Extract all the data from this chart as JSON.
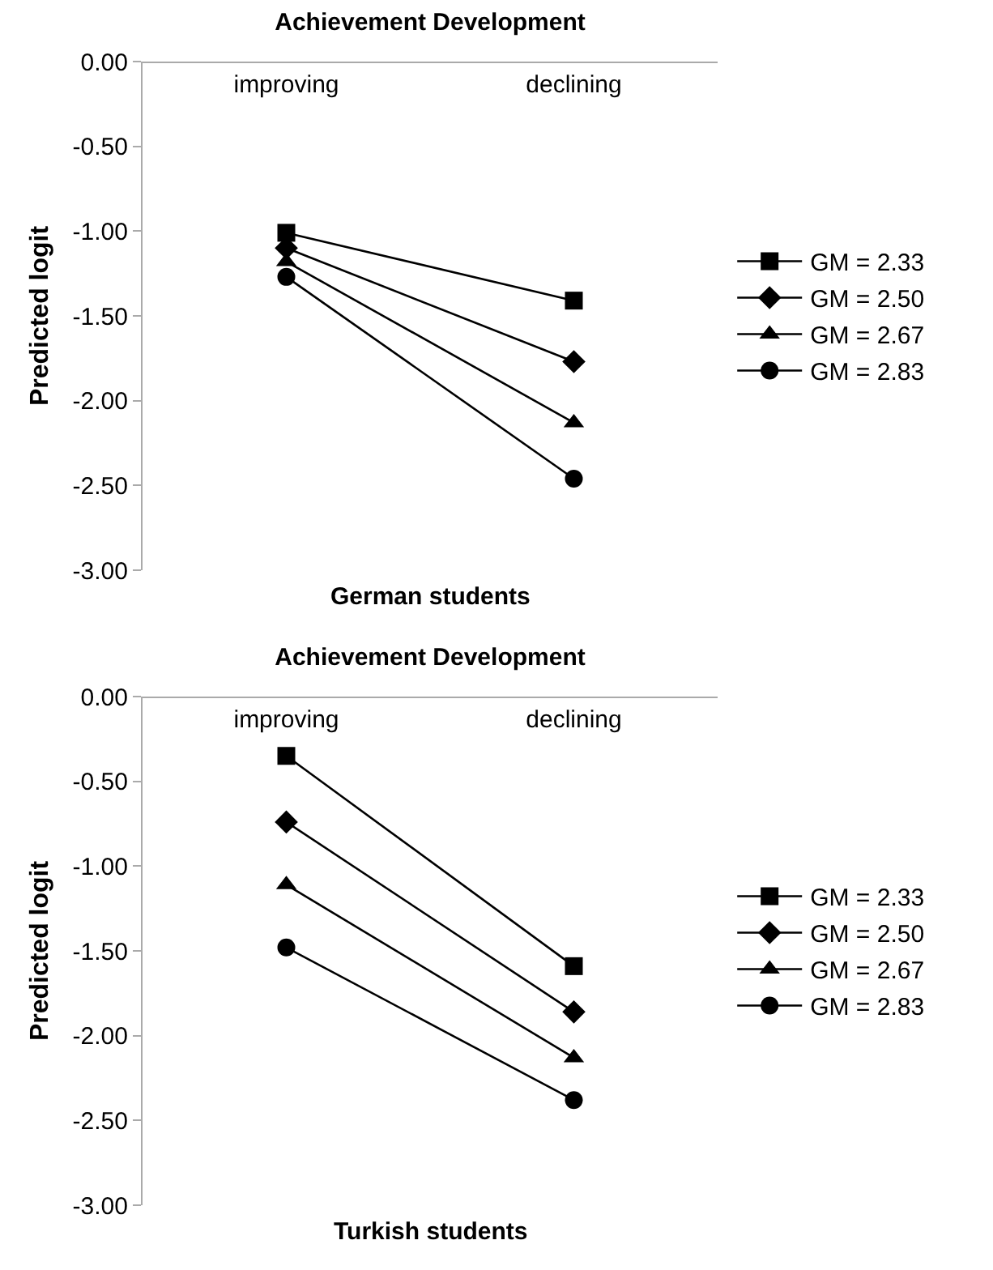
{
  "chart_data": [
    {
      "type": "line",
      "title": "Achievement Development",
      "xlabel": "German students",
      "ylabel": "Predicted logit",
      "categories": [
        "improving",
        "declining"
      ],
      "ylim": [
        -3,
        0
      ],
      "yticks": [
        {
          "value": 0,
          "label": "0.00"
        },
        {
          "value": -0.5,
          "label": "-0.50"
        },
        {
          "value": -1,
          "label": "-1.00"
        },
        {
          "value": -1.5,
          "label": "-1.50"
        },
        {
          "value": -2,
          "label": "-2.00"
        },
        {
          "value": -2.5,
          "label": "-2.50"
        },
        {
          "value": -3,
          "label": "-3.00"
        }
      ],
      "grid": false,
      "legend": "right",
      "line_style": "solid",
      "series": [
        {
          "name": "GM = 2.33",
          "color": "#000000",
          "marker": "square",
          "values": [
            -1.01,
            -1.41
          ]
        },
        {
          "name": "GM = 2.50",
          "color": "#000000",
          "marker": "diamond",
          "values": [
            -1.1,
            -1.77
          ]
        },
        {
          "name": "GM = 2.67",
          "color": "#000000",
          "marker": "triangle",
          "values": [
            -1.18,
            -2.13
          ]
        },
        {
          "name": "GM = 2.83",
          "color": "#000000",
          "marker": "circle",
          "values": [
            -1.27,
            -2.46
          ]
        }
      ]
    },
    {
      "type": "line",
      "title": "Achievement Development",
      "xlabel": "Turkish students",
      "ylabel": "Predicted logit",
      "categories": [
        "improving",
        "declining"
      ],
      "ylim": [
        -3,
        0
      ],
      "yticks": [
        {
          "value": 0,
          "label": "0.00"
        },
        {
          "value": -0.5,
          "label": "-0.50"
        },
        {
          "value": -1,
          "label": "-1.00"
        },
        {
          "value": -1.5,
          "label": "-1.50"
        },
        {
          "value": -2,
          "label": "-2.00"
        },
        {
          "value": -2.5,
          "label": "-2.50"
        },
        {
          "value": -3,
          "label": "-3.00"
        }
      ],
      "grid": false,
      "legend": "right",
      "line_style": "solid",
      "series": [
        {
          "name": "GM = 2.33",
          "color": "#000000",
          "marker": "square",
          "values": [
            -0.35,
            -1.59
          ]
        },
        {
          "name": "GM = 2.50",
          "color": "#000000",
          "marker": "diamond",
          "values": [
            -0.74,
            -1.86
          ]
        },
        {
          "name": "GM = 2.67",
          "color": "#000000",
          "marker": "triangle",
          "values": [
            -1.11,
            -2.13
          ]
        },
        {
          "name": "GM = 2.83",
          "color": "#000000",
          "marker": "circle",
          "values": [
            -1.48,
            -2.38
          ]
        }
      ]
    }
  ]
}
